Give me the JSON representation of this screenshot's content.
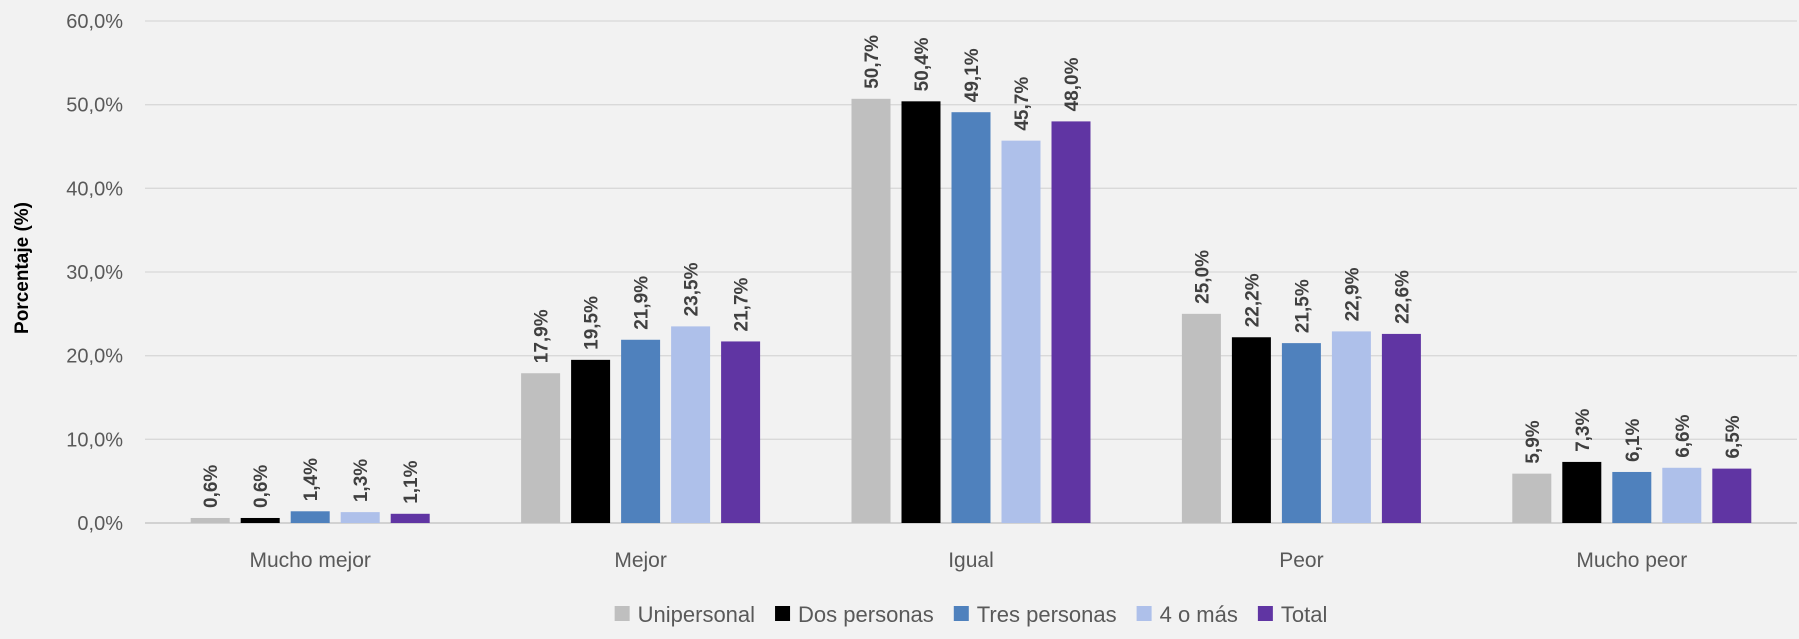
{
  "chart_data": {
    "type": "bar",
    "title": "",
    "xlabel": "",
    "ylabel": "Porcentaje (%)",
    "ylim": [
      0,
      60
    ],
    "yticks": [
      0,
      10,
      20,
      30,
      40,
      50,
      60
    ],
    "ytick_labels": [
      "0,0%",
      "10,0%",
      "20,0%",
      "30,0%",
      "40,0%",
      "50,0%",
      "60,0%"
    ],
    "grid": true,
    "legend_position": "bottom",
    "categories": [
      "Mucho mejor",
      "Mejor",
      "Igual",
      "Peor",
      "Mucho peor"
    ],
    "series": [
      {
        "name": "Unipersonal",
        "color": "#bfbfbf",
        "values": [
          0.6,
          17.9,
          50.7,
          25.0,
          5.9
        ],
        "labels": [
          "0,6%",
          "17,9%",
          "50,7%",
          "25,0%",
          "5,9%"
        ]
      },
      {
        "name": "Dos personas",
        "color": "#000000",
        "values": [
          0.6,
          19.5,
          50.4,
          22.2,
          7.3
        ],
        "labels": [
          "0,6%",
          "19,5%",
          "50,4%",
          "22,2%",
          "7,3%"
        ]
      },
      {
        "name": "Tres personas",
        "color": "#4f81bd",
        "values": [
          1.4,
          21.9,
          49.1,
          21.5,
          6.1
        ],
        "labels": [
          "1,4%",
          "21,9%",
          "49,1%",
          "21,5%",
          "6,1%"
        ]
      },
      {
        "name": "4 o más",
        "color": "#aec0ea",
        "values": [
          1.3,
          23.5,
          45.7,
          22.9,
          6.6
        ],
        "labels": [
          "1,3%",
          "23,5%",
          "45,7%",
          "22,9%",
          "6,6%"
        ]
      },
      {
        "name": "Total",
        "color": "#6035a3",
        "values": [
          1.1,
          21.7,
          48.0,
          22.6,
          6.5
        ],
        "labels": [
          "1,1%",
          "21,7%",
          "48,0%",
          "22,6%",
          "6,5%"
        ]
      }
    ]
  }
}
